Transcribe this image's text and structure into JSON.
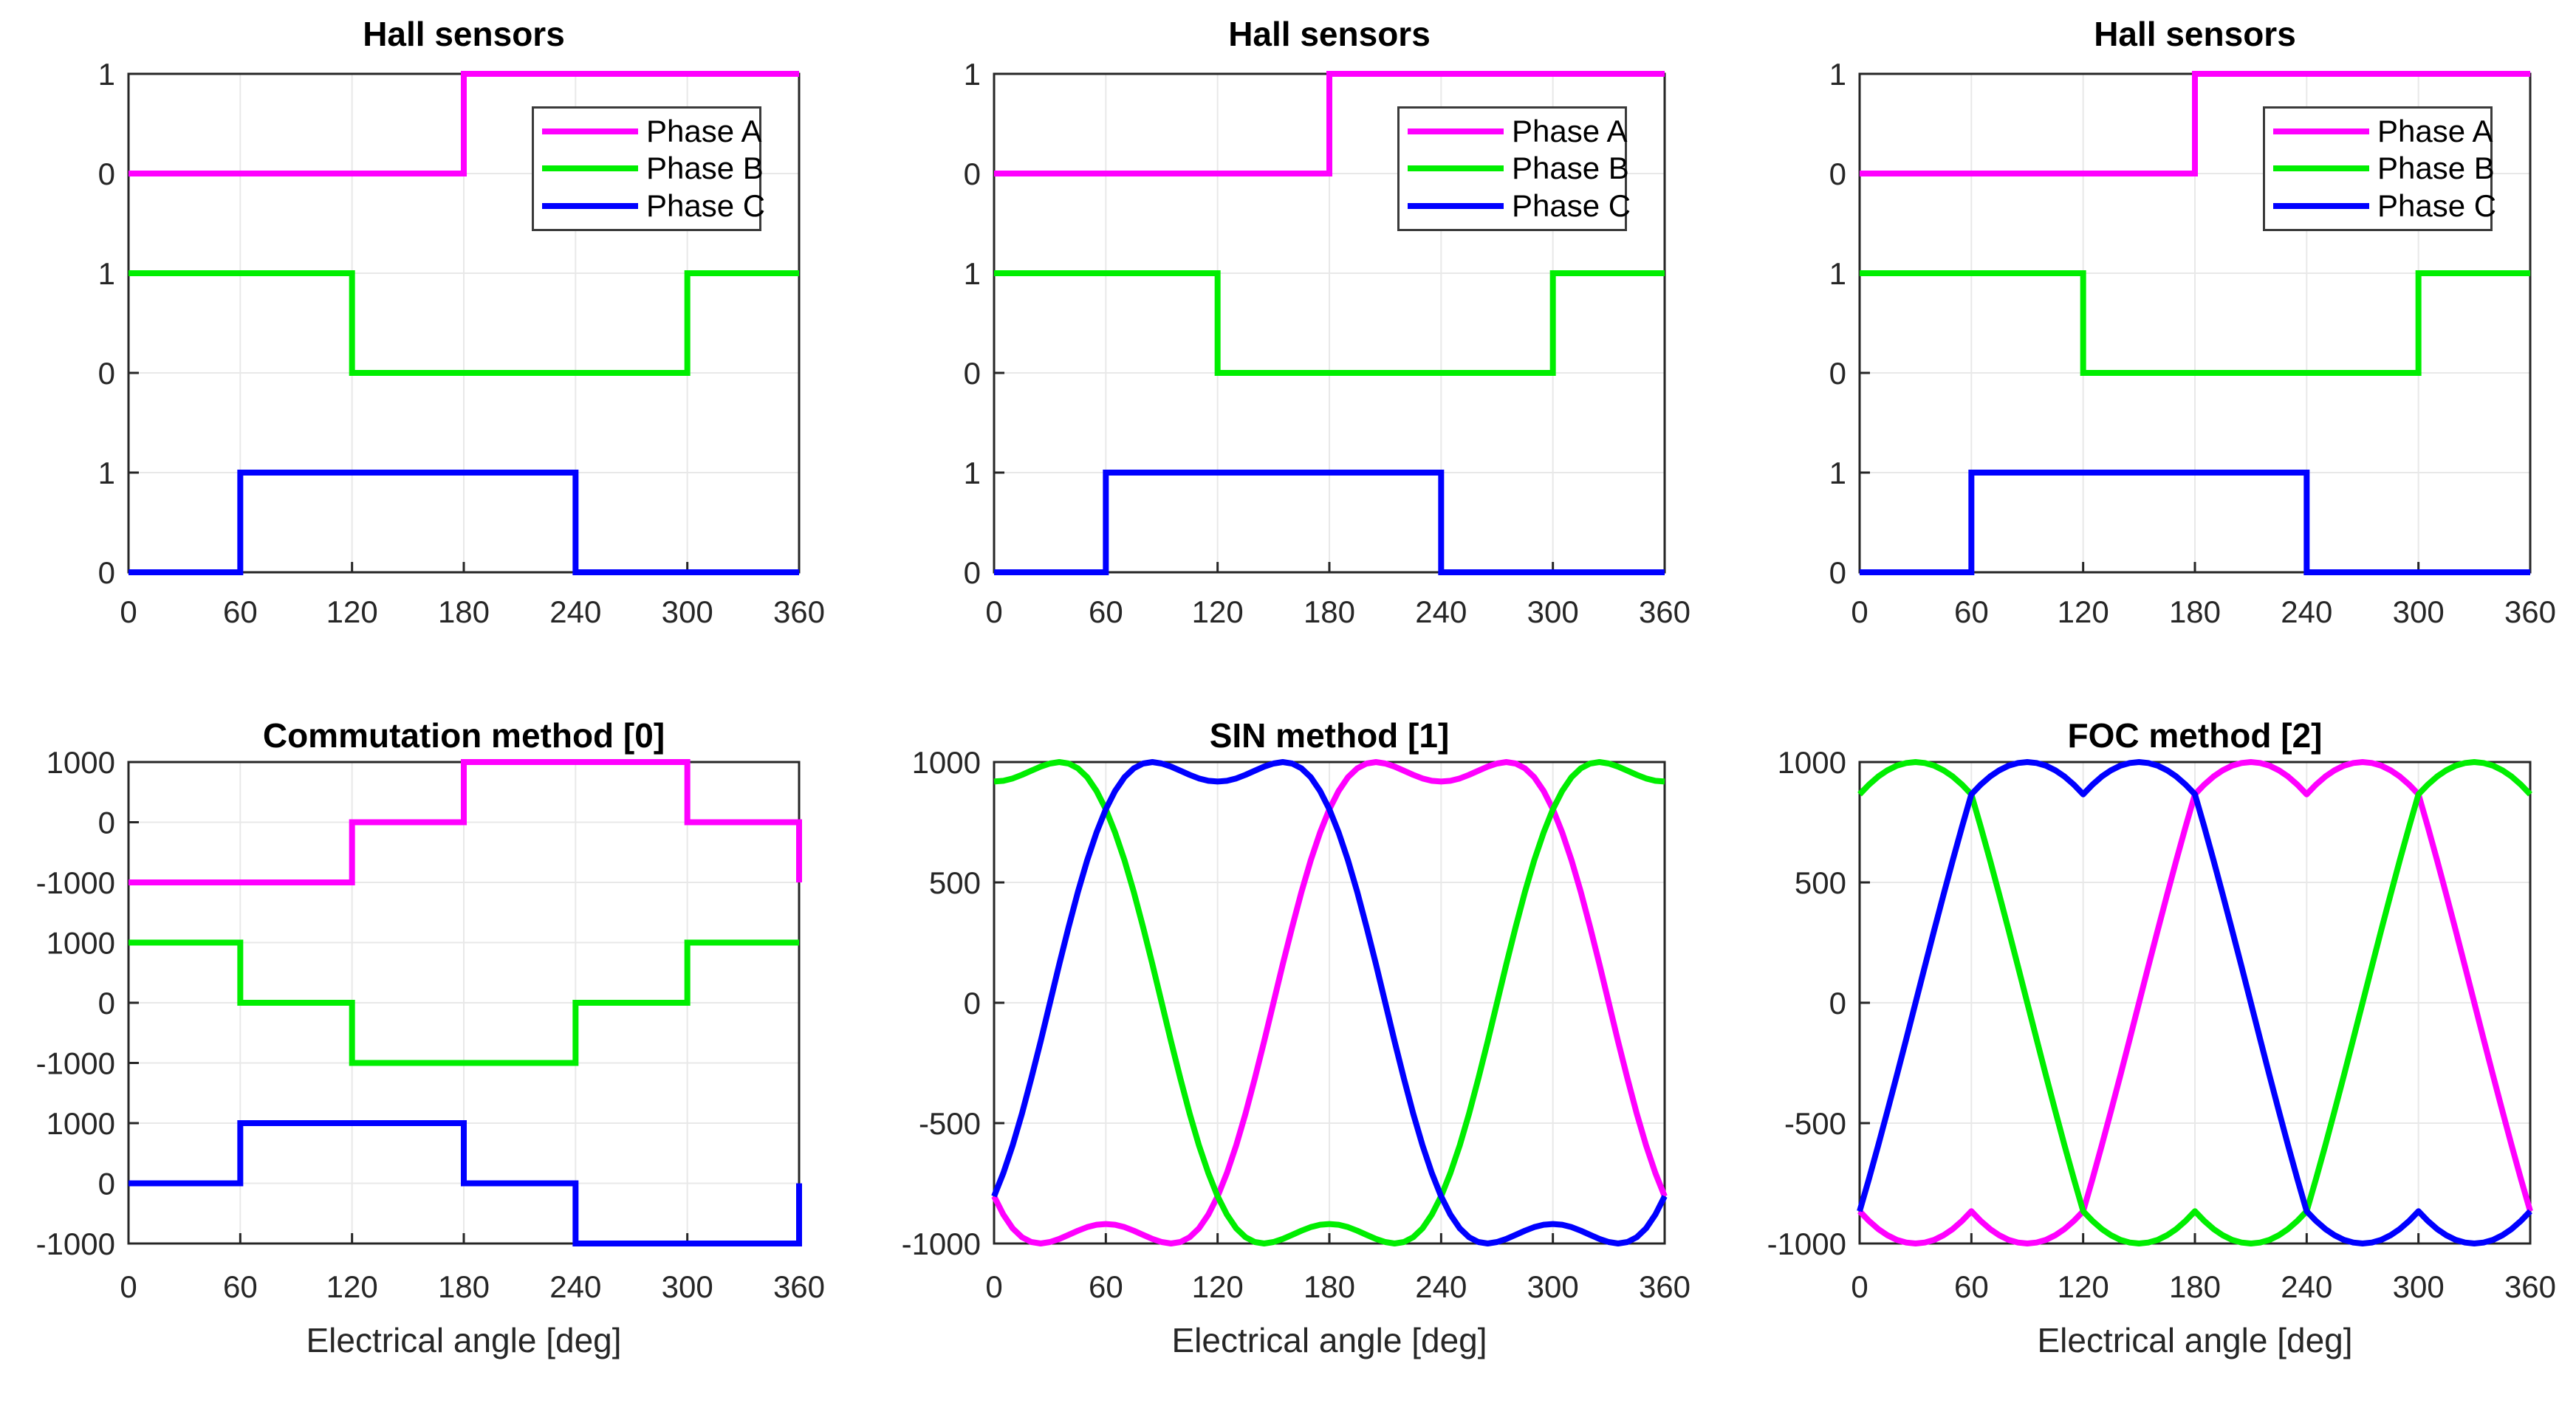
{
  "figure_background": "#FFFFFF",
  "colors": {
    "phase_a": "#FF00FF",
    "phase_b": "#00EE00",
    "phase_c": "#0000FF",
    "grid": "#E8E8E8",
    "axis": "#262626",
    "tick_text": "#262626",
    "title_text": "#000000"
  },
  "legend": {
    "entries": [
      {
        "label": "Phase A",
        "color_key": "phase_a"
      },
      {
        "label": "Phase B",
        "color_key": "phase_b"
      },
      {
        "label": "Phase C",
        "color_key": "phase_c"
      }
    ]
  },
  "chart_data": [
    {
      "type": "line",
      "subtype": "step",
      "title": "Hall sensors",
      "xlim": [
        0,
        360
      ],
      "x_ticks": [
        0,
        60,
        120,
        180,
        240,
        300,
        360
      ],
      "ylim": [
        0,
        5
      ],
      "band_div": 1,
      "grid": true,
      "legend_position": "northeast",
      "legend": [
        "Phase A",
        "Phase B",
        "Phase C"
      ],
      "y_ticks": [
        {
          "pos": 5,
          "label": "1"
        },
        {
          "pos": 4,
          "label": "0"
        },
        {
          "pos": 3,
          "label": "1"
        },
        {
          "pos": 2,
          "label": "0"
        },
        {
          "pos": 1,
          "label": "1"
        },
        {
          "pos": 0,
          "label": "0"
        }
      ],
      "series": [
        {
          "name": "Phase A",
          "color": "#FF00FF",
          "band_base": 4,
          "edges": [
            0,
            180,
            360
          ],
          "values": [
            0,
            1
          ]
        },
        {
          "name": "Phase B",
          "color": "#00EE00",
          "band_base": 2,
          "edges": [
            0,
            120,
            300,
            360
          ],
          "values": [
            1,
            0,
            1
          ]
        },
        {
          "name": "Phase C",
          "color": "#0000FF",
          "band_base": 0,
          "edges": [
            0,
            60,
            240,
            360
          ],
          "values": [
            0,
            1,
            0
          ]
        }
      ]
    },
    {
      "type": "line",
      "subtype": "step",
      "title": "Hall sensors",
      "xlim": [
        0,
        360
      ],
      "x_ticks": [
        0,
        60,
        120,
        180,
        240,
        300,
        360
      ],
      "ylim": [
        0,
        5
      ],
      "band_div": 1,
      "grid": true,
      "legend_position": "northeast",
      "legend": [
        "Phase A",
        "Phase B",
        "Phase C"
      ],
      "y_ticks": [
        {
          "pos": 5,
          "label": "1"
        },
        {
          "pos": 4,
          "label": "0"
        },
        {
          "pos": 3,
          "label": "1"
        },
        {
          "pos": 2,
          "label": "0"
        },
        {
          "pos": 1,
          "label": "1"
        },
        {
          "pos": 0,
          "label": "0"
        }
      ],
      "series": [
        {
          "name": "Phase A",
          "color": "#FF00FF",
          "band_base": 4,
          "edges": [
            0,
            180,
            360
          ],
          "values": [
            0,
            1
          ]
        },
        {
          "name": "Phase B",
          "color": "#00EE00",
          "band_base": 2,
          "edges": [
            0,
            120,
            300,
            360
          ],
          "values": [
            1,
            0,
            1
          ]
        },
        {
          "name": "Phase C",
          "color": "#0000FF",
          "band_base": 0,
          "edges": [
            0,
            60,
            240,
            360
          ],
          "values": [
            0,
            1,
            0
          ]
        }
      ]
    },
    {
      "type": "line",
      "subtype": "step",
      "title": "Hall sensors",
      "xlim": [
        0,
        360
      ],
      "x_ticks": [
        0,
        60,
        120,
        180,
        240,
        300,
        360
      ],
      "ylim": [
        0,
        5
      ],
      "band_div": 1,
      "grid": true,
      "legend_position": "northeast",
      "legend": [
        "Phase A",
        "Phase B",
        "Phase C"
      ],
      "y_ticks": [
        {
          "pos": 5,
          "label": "1"
        },
        {
          "pos": 4,
          "label": "0"
        },
        {
          "pos": 3,
          "label": "1"
        },
        {
          "pos": 2,
          "label": "0"
        },
        {
          "pos": 1,
          "label": "1"
        },
        {
          "pos": 0,
          "label": "0"
        }
      ],
      "series": [
        {
          "name": "Phase A",
          "color": "#FF00FF",
          "band_base": 4,
          "edges": [
            0,
            180,
            360
          ],
          "values": [
            0,
            1
          ]
        },
        {
          "name": "Phase B",
          "color": "#00EE00",
          "band_base": 2,
          "edges": [
            0,
            120,
            300,
            360
          ],
          "values": [
            1,
            0,
            1
          ]
        },
        {
          "name": "Phase C",
          "color": "#0000FF",
          "band_base": 0,
          "edges": [
            0,
            60,
            240,
            360
          ],
          "values": [
            0,
            1,
            0
          ]
        }
      ]
    },
    {
      "type": "line",
      "subtype": "step",
      "title": "Commutation method [0]",
      "xlabel": "Electrical angle [deg]",
      "xlim": [
        0,
        360
      ],
      "x_ticks": [
        0,
        60,
        120,
        180,
        240,
        300,
        360
      ],
      "ylim": [
        0,
        8
      ],
      "band_div": 1000,
      "grid": true,
      "y_ticks": [
        {
          "pos": 8,
          "label": "1000"
        },
        {
          "pos": 7,
          "label": "0"
        },
        {
          "pos": 6,
          "label": "-1000"
        },
        {
          "pos": 5,
          "label": "1000"
        },
        {
          "pos": 4,
          "label": "0"
        },
        {
          "pos": 3,
          "label": "-1000"
        },
        {
          "pos": 2,
          "label": "1000"
        },
        {
          "pos": 1,
          "label": "0"
        },
        {
          "pos": 0,
          "label": "-1000"
        }
      ],
      "series": [
        {
          "name": "Phase A",
          "color": "#FF00FF",
          "band_base": 7,
          "edges": [
            0,
            120,
            180,
            300,
            360
          ],
          "values": [
            -1000,
            0,
            1000,
            0
          ],
          "wrap_to": -1000
        },
        {
          "name": "Phase B",
          "color": "#00EE00",
          "band_base": 4,
          "edges": [
            0,
            60,
            120,
            240,
            300,
            360
          ],
          "values": [
            1000,
            0,
            -1000,
            0,
            1000
          ]
        },
        {
          "name": "Phase C",
          "color": "#0000FF",
          "band_base": 1,
          "edges": [
            0,
            60,
            180,
            240,
            360
          ],
          "values": [
            0,
            1000,
            0,
            -1000
          ],
          "wrap_to": 0
        }
      ]
    },
    {
      "type": "line",
      "subtype": "wave",
      "title": "SIN method [1]",
      "xlabel": "Electrical angle [deg]",
      "xlim": [
        0,
        360
      ],
      "x_ticks": [
        0,
        60,
        120,
        180,
        240,
        300,
        360
      ],
      "ylim": [
        -1000,
        1000
      ],
      "grid": true,
      "x_start": 0,
      "x_step": 5,
      "y_ticks": [
        {
          "pos": 1000,
          "label": "1000"
        },
        {
          "pos": 500,
          "label": "500"
        },
        {
          "pos": 0,
          "label": "0"
        },
        {
          "pos": -500,
          "label": "-500"
        },
        {
          "pos": -1000,
          "label": "-1000"
        }
      ],
      "series": [
        {
          "name": "Phase A",
          "color": "#FF00FF",
          "values": [
            -804,
            -880,
            -937,
            -974,
            -994,
            -1000,
            -994,
            -981,
            -964,
            -947,
            -932,
            -922,
            -919,
            -922,
            -932,
            -947,
            -964,
            -981,
            -994,
            -1000,
            -994,
            -974,
            -937,
            -880,
            -804,
            -707,
            -592,
            -460,
            -314,
            -160,
            0,
            160,
            314,
            460,
            592,
            707,
            804,
            880,
            937,
            974,
            994,
            1000,
            994,
            981,
            964,
            947,
            932,
            922,
            919,
            922,
            932,
            947,
            964,
            981,
            994,
            1000,
            994,
            974,
            937,
            880,
            804,
            707,
            592,
            460,
            314,
            160,
            0,
            -160,
            -314,
            -460,
            -592,
            -707,
            -804
          ]
        },
        {
          "name": "Phase B",
          "color": "#00EE00",
          "values": [
            919,
            922,
            932,
            947,
            964,
            981,
            994,
            1000,
            994,
            974,
            937,
            880,
            804,
            707,
            592,
            460,
            314,
            160,
            0,
            -160,
            -314,
            -460,
            -592,
            -707,
            -804,
            -880,
            -937,
            -974,
            -994,
            -1000,
            -994,
            -981,
            -964,
            -947,
            -932,
            -922,
            -919,
            -922,
            -932,
            -947,
            -964,
            -981,
            -994,
            -1000,
            -994,
            -974,
            -937,
            -880,
            -804,
            -707,
            -592,
            -460,
            -314,
            -160,
            0,
            160,
            314,
            460,
            592,
            707,
            804,
            880,
            937,
            974,
            994,
            1000,
            994,
            981,
            964,
            947,
            932,
            922,
            919
          ]
        },
        {
          "name": "Phase C",
          "color": "#0000FF",
          "values": [
            -804,
            -707,
            -592,
            -460,
            -314,
            -160,
            0,
            160,
            314,
            460,
            592,
            707,
            804,
            880,
            937,
            974,
            994,
            1000,
            994,
            981,
            964,
            947,
            932,
            922,
            919,
            922,
            932,
            947,
            964,
            981,
            994,
            1000,
            994,
            974,
            937,
            880,
            804,
            707,
            592,
            460,
            314,
            160,
            0,
            -160,
            -314,
            -460,
            -592,
            -707,
            -804,
            -880,
            -937,
            -974,
            -994,
            -1000,
            -994,
            -981,
            -964,
            -947,
            -932,
            -922,
            -919,
            -922,
            -932,
            -947,
            -964,
            -981,
            -994,
            -1000,
            -994,
            -974,
            -937,
            -880,
            -804
          ]
        }
      ]
    },
    {
      "type": "line",
      "subtype": "wave",
      "title": "FOC method [2]",
      "xlabel": "Electrical angle [deg]",
      "xlim": [
        0,
        360
      ],
      "x_ticks": [
        0,
        60,
        120,
        180,
        240,
        300,
        360
      ],
      "ylim": [
        -1000,
        1000
      ],
      "grid": true,
      "x_start": 0,
      "x_step": 5,
      "y_ticks": [
        {
          "pos": 1000,
          "label": "1000"
        },
        {
          "pos": 500,
          "label": "500"
        },
        {
          "pos": 0,
          "label": "0"
        },
        {
          "pos": -500,
          "label": "-500"
        },
        {
          "pos": -1000,
          "label": "-1000"
        }
      ],
      "series": [
        {
          "name": "Phase A",
          "color": "#FF00FF",
          "values": [
            -866,
            -906,
            -940,
            -966,
            -985,
            -996,
            -1000,
            -996,
            -985,
            -966,
            -940,
            -906,
            -866,
            -906,
            -940,
            -966,
            -985,
            -996,
            -1000,
            -996,
            -985,
            -966,
            -940,
            -906,
            -866,
            -732,
            -592,
            -448,
            -301,
            -151,
            0,
            151,
            301,
            448,
            592,
            732,
            866,
            906,
            940,
            966,
            985,
            996,
            1000,
            996,
            985,
            966,
            940,
            906,
            866,
            906,
            940,
            966,
            985,
            996,
            1000,
            996,
            985,
            966,
            940,
            906,
            866,
            732,
            592,
            448,
            301,
            151,
            0,
            -151,
            -301,
            -448,
            -592,
            -732,
            -866
          ]
        },
        {
          "name": "Phase B",
          "color": "#00EE00",
          "values": [
            866,
            906,
            940,
            966,
            985,
            996,
            1000,
            996,
            985,
            966,
            940,
            906,
            866,
            732,
            592,
            448,
            301,
            151,
            0,
            -151,
            -301,
            -448,
            -592,
            -732,
            -866,
            -906,
            -940,
            -966,
            -985,
            -996,
            -1000,
            -996,
            -985,
            -966,
            -940,
            -906,
            -866,
            -906,
            -940,
            -966,
            -985,
            -996,
            -1000,
            -996,
            -985,
            -966,
            -940,
            -906,
            -866,
            -732,
            -592,
            -448,
            -301,
            -151,
            0,
            151,
            301,
            448,
            592,
            732,
            866,
            906,
            940,
            966,
            985,
            996,
            1000,
            996,
            985,
            966,
            940,
            906,
            866
          ]
        },
        {
          "name": "Phase C",
          "color": "#0000FF",
          "values": [
            -866,
            -732,
            -592,
            -448,
            -301,
            -151,
            0,
            151,
            301,
            448,
            592,
            732,
            866,
            906,
            940,
            966,
            985,
            996,
            1000,
            996,
            985,
            966,
            940,
            906,
            866,
            906,
            940,
            966,
            985,
            996,
            1000,
            996,
            985,
            966,
            940,
            906,
            866,
            732,
            592,
            448,
            301,
            151,
            0,
            -151,
            -301,
            -448,
            -592,
            -732,
            -866,
            -906,
            -940,
            -966,
            -985,
            -996,
            -1000,
            -996,
            -985,
            -966,
            -940,
            -906,
            -866,
            -906,
            -940,
            -966,
            -985,
            -996,
            -1000,
            -996,
            -985,
            -966,
            -940,
            -906,
            -866
          ]
        }
      ]
    }
  ]
}
